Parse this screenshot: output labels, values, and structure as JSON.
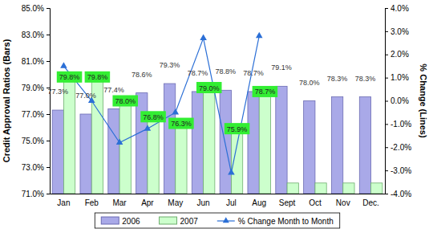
{
  "chart_data": {
    "type": "bar",
    "categories": [
      "Jan",
      "Feb",
      "Mar",
      "Apr",
      "May",
      "Jun",
      "Jul",
      "Aug",
      "Sept",
      "Oct",
      "Nov",
      "Dec."
    ],
    "y_label": "Credit Approval Ratios (Bars)",
    "y2_label": "% Change (Lines)",
    "ylim": [
      71,
      85
    ],
    "yticks": [
      {
        "value": 71,
        "label": "71.0%"
      },
      {
        "value": 73,
        "label": "73.0%"
      },
      {
        "value": 75,
        "label": "75.0%"
      },
      {
        "value": 77,
        "label": "77.0%"
      },
      {
        "value": 79,
        "label": "79.0%"
      },
      {
        "value": 81,
        "label": "81.0%"
      },
      {
        "value": 83,
        "label": "83.0%"
      },
      {
        "value": 85,
        "label": "85.0%"
      }
    ],
    "y2lim": [
      -4,
      4
    ],
    "y2ticks": [
      {
        "value": -4,
        "label": "-4.0%"
      },
      {
        "value": -3,
        "label": "-3.0%"
      },
      {
        "value": -2,
        "label": "-2.0%"
      },
      {
        "value": -1,
        "label": "-1.0%"
      },
      {
        "value": 0,
        "label": "0.0%"
      },
      {
        "value": 1,
        "label": "1.0%"
      },
      {
        "value": 2,
        "label": "2.0%"
      },
      {
        "value": 3,
        "label": "3.0%"
      },
      {
        "value": 4,
        "label": "4.0%"
      }
    ],
    "grid": false,
    "legend": "bottom",
    "data_labels": true,
    "series": [
      {
        "name": "2006",
        "type": "bar",
        "color": "#a9a9e8",
        "values": [
          77.3,
          77.0,
          77.4,
          78.6,
          79.3,
          78.7,
          78.8,
          78.7,
          79.1,
          78.0,
          78.3,
          78.3
        ],
        "value_labels": [
          "77.3%",
          "77.0%",
          "77.4%",
          "78.6%",
          "79.3%",
          "78.7%",
          "78.8%",
          "78.7%",
          "79.1%",
          "78.0%",
          "78.3%",
          "78.3%"
        ]
      },
      {
        "name": "2007",
        "type": "bar",
        "color": "#ccffcc",
        "values": [
          79.8,
          79.8,
          78.0,
          76.8,
          76.3,
          79.0,
          75.9,
          78.7,
          71.8,
          71.8,
          71.8,
          71.8
        ],
        "value_labels": [
          "79.8%",
          "79.8%",
          "78.0%",
          "76.8%",
          "76.3%",
          "79.0%",
          "75.9%",
          "78.7%",
          null,
          null,
          null,
          null
        ]
      },
      {
        "name": "% Change Month to Month",
        "type": "line",
        "axis": "y2",
        "color": "#2b6fd6",
        "marker": "triangle",
        "line_style": "solid",
        "values": [
          1.5,
          0.0,
          -1.8,
          -1.2,
          -0.5,
          2.7,
          -3.1,
          2.8,
          null,
          null,
          null,
          null
        ]
      }
    ]
  }
}
